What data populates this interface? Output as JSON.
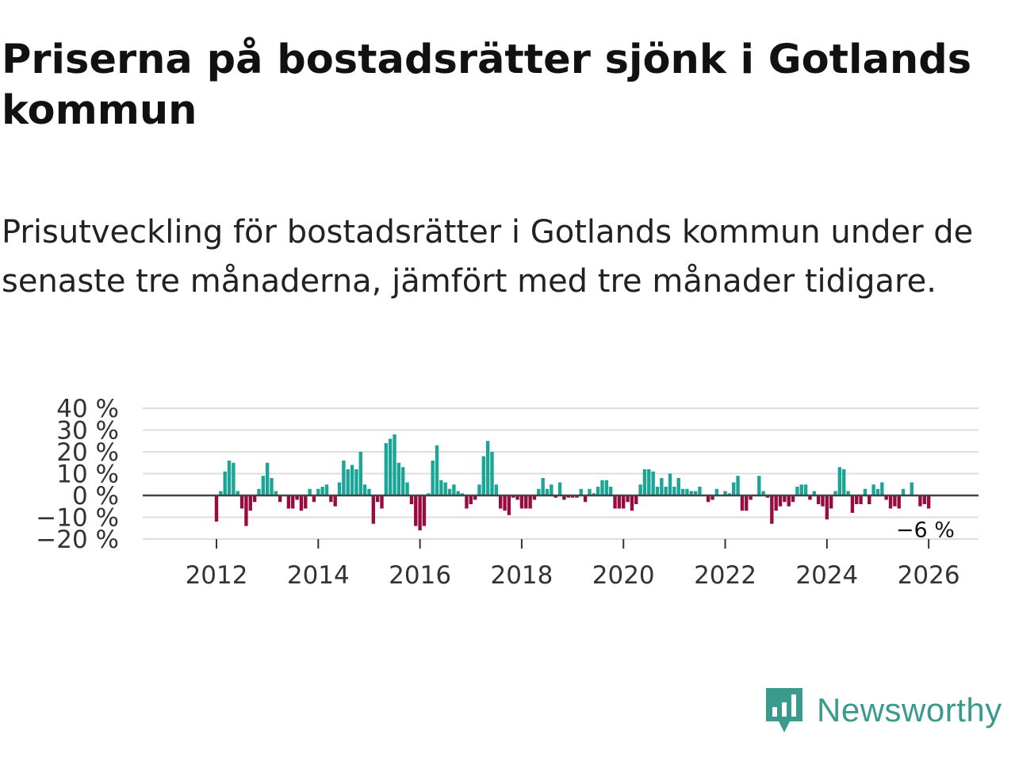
{
  "title": "Priserna på bostadsrätter sjönk i Gotlands kommun",
  "subtitle": "Prisutveckling för bostadsrätter i Gotlands kommun under de senaste tre månaderna, jämfört med tre månader tidigare.",
  "brand": {
    "name": "Newsworthy",
    "icon": "newsworthy-logo-icon",
    "color": "#3a9b8c"
  },
  "chart_data": {
    "type": "bar",
    "title": "",
    "xlabel": "",
    "ylabel": "",
    "ylim": [
      -20,
      40
    ],
    "xlim": [
      2010.55,
      2026.98
    ],
    "y_ticks": [
      {
        "value": 40,
        "label": "40 %"
      },
      {
        "value": 30,
        "label": "30 %"
      },
      {
        "value": 20,
        "label": "20 %"
      },
      {
        "value": 10,
        "label": "10 %"
      },
      {
        "value": 0,
        "label": "0 %"
      },
      {
        "value": -10,
        "label": "−10 %"
      },
      {
        "value": -20,
        "label": "−20 %"
      }
    ],
    "x_ticks": [
      {
        "value": 2012,
        "label": "2012"
      },
      {
        "value": 2014,
        "label": "2014"
      },
      {
        "value": 2016,
        "label": "2016"
      },
      {
        "value": 2018,
        "label": "2018"
      },
      {
        "value": 2020,
        "label": "2020"
      },
      {
        "value": 2022,
        "label": "2022"
      },
      {
        "value": 2024,
        "label": "2024"
      },
      {
        "value": 2026,
        "label": "2026"
      }
    ],
    "series": [
      {
        "name": "Prisutveckling",
        "start_year": 2012,
        "start_month": 1,
        "frequency": "monthly",
        "values": [
          -12,
          2,
          11,
          16,
          15,
          2,
          -6,
          -14,
          -7,
          -3,
          3,
          9,
          15,
          8,
          2,
          -3,
          0,
          -6,
          -6,
          -2,
          -7,
          -6,
          3,
          -3,
          3,
          4,
          5,
          -3,
          -5,
          6,
          16,
          12,
          14,
          12,
          20,
          5,
          3,
          -13,
          -3,
          -6,
          24,
          26,
          28,
          15,
          13,
          6,
          -4,
          -14,
          -16,
          -14,
          1,
          16,
          23,
          7,
          6,
          3,
          5,
          2,
          1,
          -6,
          -4,
          -2,
          5,
          18,
          25,
          20,
          5,
          -6,
          -7,
          -9,
          -1,
          -2,
          -6,
          -6,
          -6,
          -2,
          3,
          8,
          3,
          5,
          -1,
          6,
          -2,
          -1,
          -1,
          -1,
          3,
          -3,
          3,
          1,
          4,
          7,
          7,
          4,
          -6,
          -6,
          -6,
          -3,
          -7,
          -4,
          5,
          12,
          12,
          11,
          4,
          8,
          4,
          10,
          4,
          8,
          3,
          3,
          2,
          2,
          4,
          0,
          -3,
          -2,
          3,
          0,
          2,
          1,
          6,
          9,
          -7,
          -7,
          -2,
          0,
          9,
          2,
          -1,
          -13,
          -7,
          -5,
          -3,
          -5,
          -3,
          4,
          5,
          5,
          -2,
          2,
          -4,
          -5,
          -11,
          -6,
          2,
          13,
          12,
          2,
          -8,
          -4,
          -4,
          3,
          -4,
          5,
          3,
          6,
          -2,
          -6,
          -5,
          -6,
          3,
          0,
          6,
          0,
          -5,
          -4,
          -6
        ]
      }
    ],
    "colors": {
      "positive": "#1aa596",
      "negative": "#9b0a3f"
    },
    "annotations": [
      {
        "text": "−6 %",
        "x": 2025.95,
        "y": -6
      }
    ],
    "grid": true
  }
}
